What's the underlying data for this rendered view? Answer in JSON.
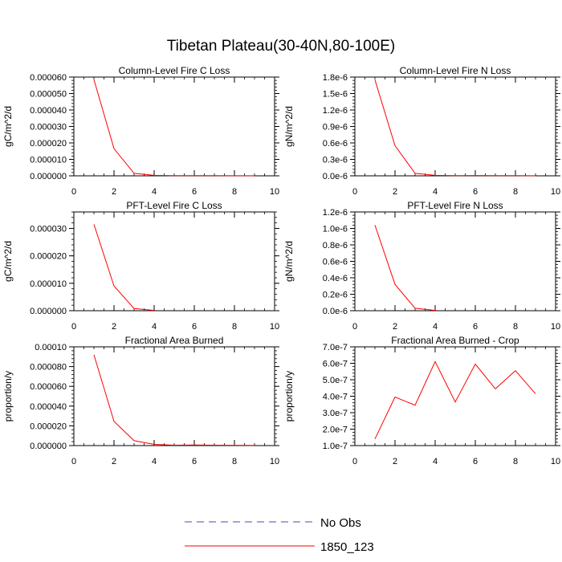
{
  "figure_title": "Tibetan Plateau(30-40N,80-100E)",
  "legend": [
    {
      "label": "No Obs",
      "color": "#4a4aa8",
      "dash": true
    },
    {
      "label": "1850_123",
      "color": "#ff0000",
      "dash": false
    }
  ],
  "chart_data": [
    {
      "type": "line",
      "title": "Column-Level Fire C Loss",
      "xlabel": "",
      "ylabel": "gC/m^2/d",
      "xlim": [
        0,
        10
      ],
      "ylim": [
        0,
        6e-05
      ],
      "xticks": [
        0,
        2,
        4,
        6,
        8,
        10
      ],
      "xtick_labels": [
        "0",
        "2",
        "4",
        "6",
        "8",
        "10"
      ],
      "yticks": [
        0,
        1e-05,
        2e-05,
        3e-05,
        4e-05,
        5e-05,
        6e-05
      ],
      "ytick_labels": [
        "0.000000",
        "0.000010",
        "0.000020",
        "0.000030",
        "0.000040",
        "0.000050",
        "0.000060"
      ],
      "series": [
        {
          "name": "1850_123",
          "color": "#ff0000",
          "x": [
            1,
            2,
            3,
            4,
            5,
            6,
            7,
            8,
            9
          ],
          "values": [
            5.85e-05,
            1.65e-05,
            1.5e-06,
            3e-07,
            1e-07,
            1.5e-07,
            1e-07,
            8e-08,
            5e-08
          ]
        }
      ]
    },
    {
      "type": "line",
      "title": "Column-Level Fire N Loss",
      "xlabel": "",
      "ylabel": "gN/m^2/d",
      "xlim": [
        0,
        10
      ],
      "ylim": [
        0,
        1.8e-06
      ],
      "xticks": [
        0,
        2,
        4,
        6,
        8,
        10
      ],
      "xtick_labels": [
        "0",
        "2",
        "4",
        "6",
        "8",
        "10"
      ],
      "yticks": [
        0,
        3e-07,
        6e-07,
        9e-07,
        1.2e-06,
        1.5e-06,
        1.8e-06
      ],
      "ytick_labels": [
        "0.0e-6",
        "0.3e-6",
        "0.6e-6",
        "0.9e-6",
        "1.2e-6",
        "1.5e-6",
        "1.8e-6"
      ],
      "series": [
        {
          "name": "1850_123",
          "color": "#ff0000",
          "x": [
            1,
            2,
            3,
            4,
            5,
            6,
            7,
            8,
            9
          ],
          "values": [
            1.75e-06,
            5.5e-07,
            4.5e-08,
            1e-08,
            4e-09,
            6e-09,
            4e-09,
            3e-09,
            2e-09
          ]
        }
      ]
    },
    {
      "type": "line",
      "title": "PFT-Level Fire C Loss",
      "xlabel": "",
      "ylabel": "gC/m^2/d",
      "xlim": [
        0,
        10
      ],
      "ylim": [
        0,
        3.6e-05
      ],
      "xticks": [
        0,
        2,
        4,
        6,
        8,
        10
      ],
      "xtick_labels": [
        "0",
        "2",
        "4",
        "6",
        "8",
        "10"
      ],
      "yticks": [
        0,
        1e-05,
        2e-05,
        3e-05
      ],
      "ytick_labels": [
        "0.000000",
        "0.000010",
        "0.000020",
        "0.000030"
      ],
      "series": [
        {
          "name": "1850_123",
          "color": "#ff0000",
          "x": [
            1,
            2,
            3,
            4
          ],
          "values": [
            3.15e-05,
            9e-06,
            8e-07,
            1e-07
          ]
        }
      ]
    },
    {
      "type": "line",
      "title": "PFT-Level Fire N Loss",
      "xlabel": "",
      "ylabel": "gN/m^2/d",
      "xlim": [
        0,
        10
      ],
      "ylim": [
        0,
        1.2e-06
      ],
      "xticks": [
        0,
        2,
        4,
        6,
        8,
        10
      ],
      "xtick_labels": [
        "0",
        "2",
        "4",
        "6",
        "8",
        "10"
      ],
      "yticks": [
        0,
        2e-07,
        4e-07,
        6e-07,
        8e-07,
        1e-06,
        1.2e-06
      ],
      "ytick_labels": [
        "0.0e-6",
        "0.2e-6",
        "0.4e-6",
        "0.6e-6",
        "0.8e-6",
        "1.0e-6",
        "1.2e-6"
      ],
      "series": [
        {
          "name": "1850_123",
          "color": "#ff0000",
          "x": [
            1,
            2,
            3,
            4
          ],
          "values": [
            1.04e-06,
            3.2e-07,
            3e-08,
            4e-09
          ]
        }
      ]
    },
    {
      "type": "line",
      "title": "Fractional Area Burned",
      "xlabel": "",
      "ylabel": "proportion/y",
      "xlim": [
        0,
        10
      ],
      "ylim": [
        0,
        0.0001
      ],
      "xticks": [
        0,
        2,
        4,
        6,
        8,
        10
      ],
      "xtick_labels": [
        "0",
        "2",
        "4",
        "6",
        "8",
        "10"
      ],
      "yticks": [
        0,
        2e-05,
        4e-05,
        6e-05,
        8e-05,
        0.0001
      ],
      "ytick_labels": [
        "0.000000",
        "0.000020",
        "0.000040",
        "0.000060",
        "0.000080",
        "0.00010"
      ],
      "series": [
        {
          "name": "1850_123",
          "color": "#ff0000",
          "x": [
            1,
            2,
            3,
            4,
            5,
            6,
            7,
            8,
            9
          ],
          "values": [
            9.2e-05,
            2.45e-05,
            5e-06,
            1.2e-06,
            4e-07,
            6e-07,
            4e-07,
            3e-07,
            2e-07
          ]
        }
      ]
    },
    {
      "type": "line",
      "title": "Fractional Area Burned - Crop",
      "xlabel": "",
      "ylabel": "proportion/y",
      "xlim": [
        0,
        10
      ],
      "ylim": [
        1e-07,
        7e-07
      ],
      "xticks": [
        0,
        2,
        4,
        6,
        8,
        10
      ],
      "xtick_labels": [
        "0",
        "2",
        "4",
        "6",
        "8",
        "10"
      ],
      "yticks": [
        1e-07,
        2e-07,
        3e-07,
        4e-07,
        5e-07,
        6e-07,
        7e-07
      ],
      "ytick_labels": [
        "1.0e-7",
        "2.0e-7",
        "3.0e-7",
        "4.0e-7",
        "5.0e-7",
        "6.0e-7",
        "7.0e-7"
      ],
      "series": [
        {
          "name": "1850_123",
          "color": "#ff0000",
          "x": [
            1,
            2,
            3,
            4,
            5,
            6,
            7,
            8,
            9
          ],
          "values": [
            1.4e-07,
            3.95e-07,
            3.45e-07,
            6.1e-07,
            3.65e-07,
            5.95e-07,
            4.45e-07,
            5.55e-07,
            4.15e-07
          ]
        }
      ]
    }
  ]
}
